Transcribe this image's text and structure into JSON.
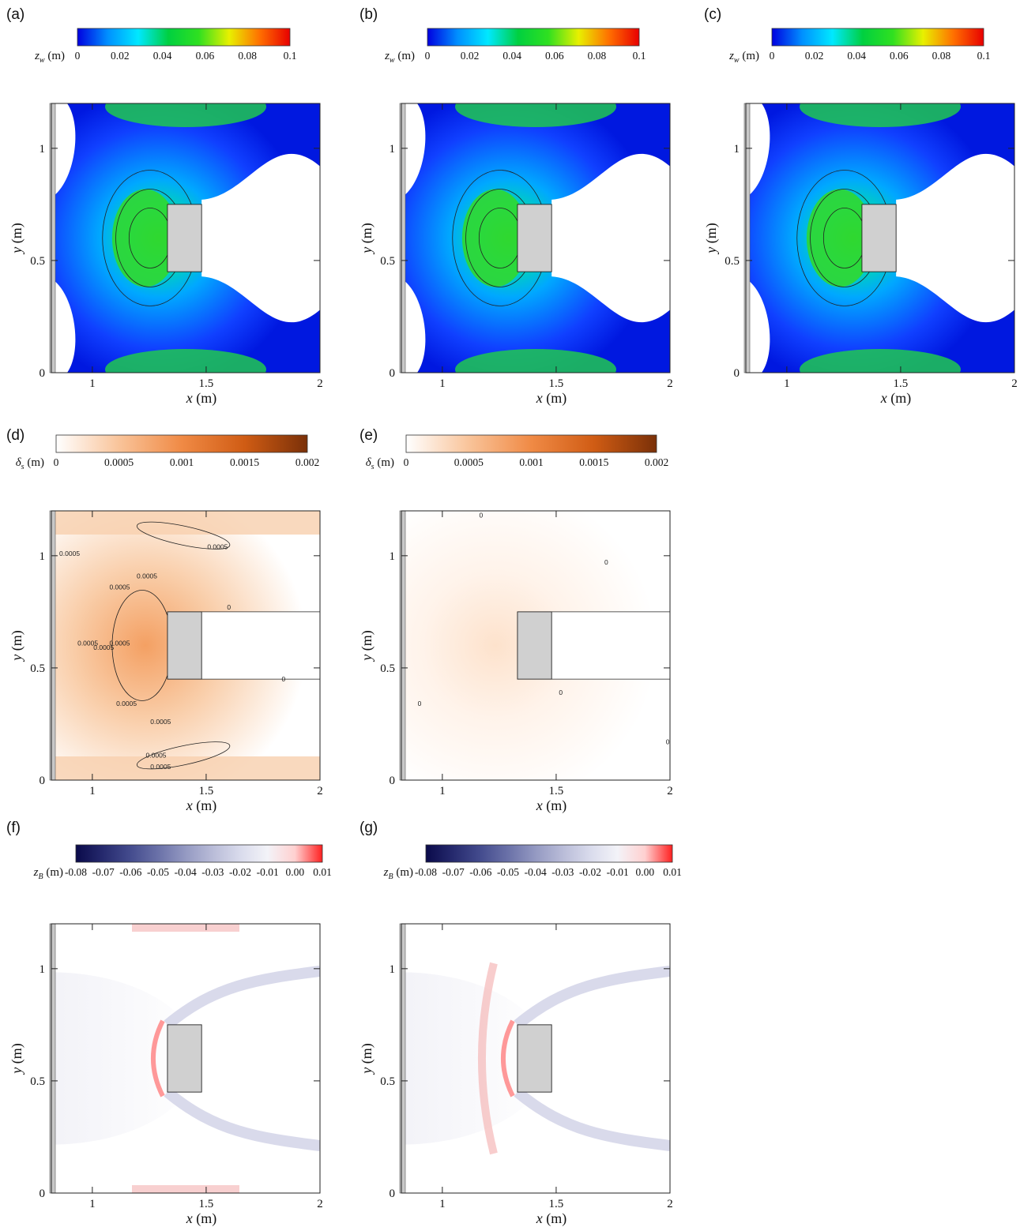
{
  "chart_data": [
    {
      "panel": "(a)",
      "type": "heatmap",
      "colorbar": {
        "label": "z_w (m)",
        "ticks": [
          "0",
          "0.02",
          "0.04",
          "0.06",
          "0.08",
          "0.1"
        ],
        "range": [
          0,
          0.1
        ],
        "colormap": "rainbow",
        "colors": [
          "#0000e0",
          "#0090ff",
          "#00e8ff",
          "#00d040",
          "#30e020",
          "#e8f000",
          "#ff7000",
          "#e80000"
        ]
      },
      "xlabel": "x (m)",
      "ylabel": "y (m)",
      "xlim": [
        0.82,
        2.0
      ],
      "ylim": [
        0,
        1.2
      ],
      "xticks": [
        "1",
        "1.5",
        "2"
      ],
      "yticks": [
        "0",
        "0.5",
        "1"
      ],
      "obstacle": {
        "x": [
          1.33,
          1.48
        ],
        "y": [
          0.45,
          0.75
        ]
      },
      "wall": {
        "x": [
          0.8,
          0.82
        ],
        "y": [
          0,
          1.2
        ]
      }
    },
    {
      "panel": "(b)",
      "type": "heatmap",
      "colorbar": {
        "label": "z_w (m)",
        "ticks": [
          "0",
          "0.02",
          "0.04",
          "0.06",
          "0.08",
          "0.1"
        ],
        "range": [
          0,
          0.1
        ],
        "colormap": "rainbow",
        "colors": [
          "#0000e0",
          "#0090ff",
          "#00e8ff",
          "#00d040",
          "#30e020",
          "#e8f000",
          "#ff7000",
          "#e80000"
        ]
      },
      "xlabel": "x (m)",
      "ylabel": "y (m)",
      "xlim": [
        0.82,
        2.0
      ],
      "ylim": [
        0,
        1.2
      ],
      "xticks": [
        "1",
        "1.5",
        "2"
      ],
      "yticks": [
        "0",
        "0.5",
        "1"
      ],
      "obstacle": {
        "x": [
          1.33,
          1.48
        ],
        "y": [
          0.45,
          0.75
        ]
      },
      "wall": {
        "x": [
          0.8,
          0.82
        ],
        "y": [
          0,
          1.2
        ]
      }
    },
    {
      "panel": "(c)",
      "type": "heatmap",
      "colorbar": {
        "label": "z_w (m)",
        "ticks": [
          "0",
          "0.02",
          "0.04",
          "0.06",
          "0.08",
          "0.1"
        ],
        "range": [
          0,
          0.1
        ],
        "colormap": "rainbow",
        "colors": [
          "#0000e0",
          "#0090ff",
          "#00e8ff",
          "#00d040",
          "#30e020",
          "#e8f000",
          "#ff7000",
          "#e80000"
        ]
      },
      "xlabel": "x (m)",
      "ylabel": "y (m)",
      "xlim": [
        0.82,
        2.0
      ],
      "ylim": [
        0,
        1.2
      ],
      "xticks": [
        "1",
        "1.5",
        "2"
      ],
      "yticks": [
        "0",
        "0.5",
        "1"
      ],
      "obstacle": {
        "x": [
          1.33,
          1.48
        ],
        "y": [
          0.45,
          0.75
        ]
      },
      "wall": {
        "x": [
          0.8,
          0.82
        ],
        "y": [
          0,
          1.2
        ]
      }
    },
    {
      "panel": "(d)",
      "type": "heatmap",
      "colorbar": {
        "label": "δ_s (m)",
        "ticks": [
          "0",
          "0.0005",
          "0.001",
          "0.0015",
          "0.002"
        ],
        "range": [
          0,
          0.002
        ],
        "colormap": "orange",
        "colors": [
          "#ffffff",
          "#f9c49a",
          "#f08a45",
          "#d05c14",
          "#7a3008"
        ]
      },
      "xlabel": "x (m)",
      "ylabel": "y (m)",
      "xlim": [
        0.82,
        2.0
      ],
      "ylim": [
        0,
        1.2
      ],
      "xticks": [
        "1",
        "1.5",
        "2"
      ],
      "yticks": [
        "0",
        "0.5",
        "1"
      ],
      "contour_labels": [
        "0.0005",
        "0.0005",
        "0.0005",
        "0.0005",
        "0.0005",
        "0.0005",
        "0.0005",
        "0.0005",
        "0.0005",
        "0.0005",
        "0.0005",
        "0",
        "0"
      ],
      "obstacle": {
        "x": [
          1.33,
          1.48
        ],
        "y": [
          0.45,
          0.75
        ]
      },
      "wall": {
        "x": [
          0.8,
          0.82
        ],
        "y": [
          0,
          1.2
        ]
      }
    },
    {
      "panel": "(e)",
      "type": "heatmap",
      "colorbar": {
        "label": "δ_s (m)",
        "ticks": [
          "0",
          "0.0005",
          "0.001",
          "0.0015",
          "0.002"
        ],
        "range": [
          0,
          0.002
        ],
        "colormap": "orange",
        "colors": [
          "#ffffff",
          "#f9c49a",
          "#f08a45",
          "#d05c14",
          "#7a3008"
        ]
      },
      "xlabel": "x (m)",
      "ylabel": "y (m)",
      "xlim": [
        0.82,
        2.0
      ],
      "ylim": [
        0,
        1.2
      ],
      "xticks": [
        "1",
        "1.5",
        "2"
      ],
      "yticks": [
        "0",
        "0.5",
        "1"
      ],
      "contour_labels": [
        "0",
        "0",
        "0",
        "0",
        "0"
      ],
      "obstacle": {
        "x": [
          1.33,
          1.48
        ],
        "y": [
          0.45,
          0.75
        ]
      },
      "wall": {
        "x": [
          0.8,
          0.82
        ],
        "y": [
          0,
          1.2
        ]
      }
    },
    {
      "panel": "(f)",
      "type": "heatmap",
      "colorbar": {
        "label": "z_B (m)",
        "ticks": [
          "-0.08",
          "-0.07",
          "-0.06",
          "-0.05",
          "-0.04",
          "-0.03",
          "-0.02",
          "-0.01",
          "0.00",
          "0.01"
        ],
        "range": [
          -0.08,
          0.01
        ],
        "colormap": "navy-white-red",
        "colors": [
          "#0a0a4a",
          "#262a6e",
          "#444c8e",
          "#6a71a8",
          "#9499c2",
          "#b9bcd8",
          "#d9dbec",
          "#f3f3f8",
          "#ffd0d0",
          "#ff2020"
        ]
      },
      "xlabel": "x (m)",
      "ylabel": "y (m)",
      "xlim": [
        0.82,
        2.0
      ],
      "ylim": [
        0,
        1.2
      ],
      "xticks": [
        "1",
        "1.5",
        "2"
      ],
      "yticks": [
        "0",
        "0.5",
        "1"
      ],
      "obstacle": {
        "x": [
          1.33,
          1.48
        ],
        "y": [
          0.45,
          0.75
        ]
      },
      "wall": {
        "x": [
          0.8,
          0.82
        ],
        "y": [
          0,
          1.2
        ]
      }
    },
    {
      "panel": "(g)",
      "type": "heatmap",
      "colorbar": {
        "label": "z_B (m)",
        "ticks": [
          "-0.08",
          "-0.07",
          "-0.06",
          "-0.05",
          "-0.04",
          "-0.03",
          "-0.02",
          "-0.01",
          "0.00",
          "0.01"
        ],
        "range": [
          -0.08,
          0.01
        ],
        "colormap": "navy-white-red",
        "colors": [
          "#0a0a4a",
          "#262a6e",
          "#444c8e",
          "#6a71a8",
          "#9499c2",
          "#b9bcd8",
          "#d9dbec",
          "#f3f3f8",
          "#ffd0d0",
          "#ff2020"
        ]
      },
      "xlabel": "x (m)",
      "ylabel": "y (m)",
      "xlim": [
        0.82,
        2.0
      ],
      "ylim": [
        0,
        1.2
      ],
      "xticks": [
        "1",
        "1.5",
        "2"
      ],
      "yticks": [
        "0",
        "0.5",
        "1"
      ],
      "obstacle": {
        "x": [
          1.33,
          1.48
        ],
        "y": [
          0.45,
          0.75
        ]
      },
      "wall": {
        "x": [
          0.8,
          0.82
        ],
        "y": [
          0,
          1.2
        ]
      }
    }
  ]
}
